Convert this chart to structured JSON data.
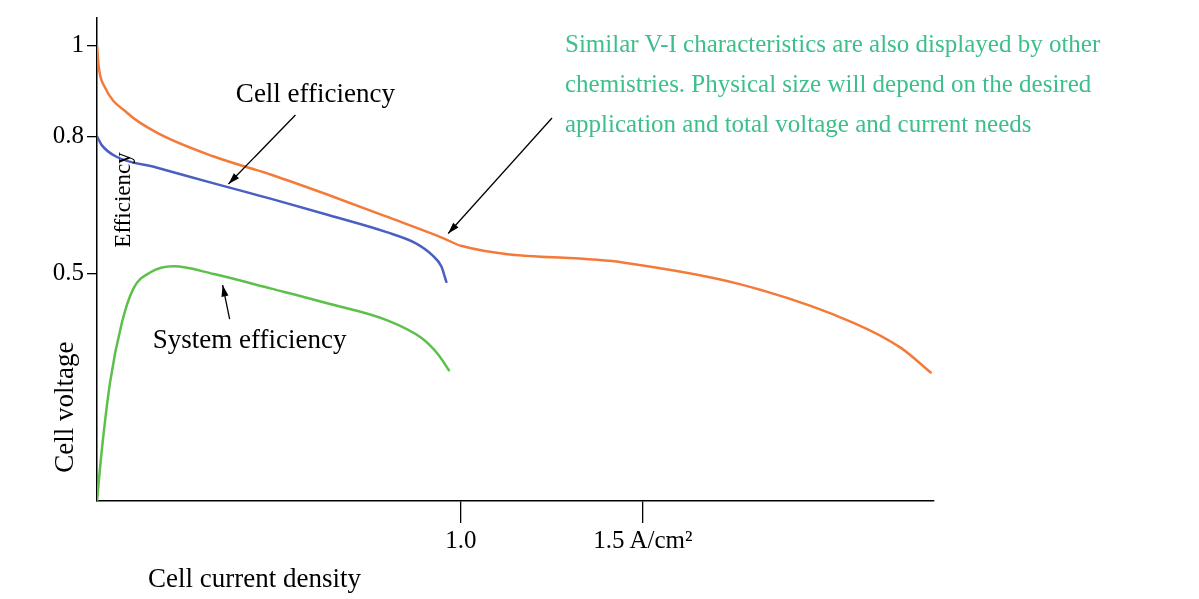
{
  "chart_data": {
    "type": "line",
    "xlabel": "Cell current density",
    "ylabel": "Cell voltage",
    "y2label": "Efficiency",
    "xlim": [
      0,
      2.3
    ],
    "xticks": [
      {
        "value": 1.0,
        "label": "1.0"
      },
      {
        "value": 1.5,
        "label": "1.5 A/cm²"
      }
    ],
    "ylim": [
      0,
      1.06
    ],
    "yticks": [
      0.5,
      0.8,
      1
    ],
    "marker": "none",
    "line_style": "solid",
    "legend": false,
    "grid": false,
    "series": [
      {
        "color": "#f47a3a",
        "x": [
          0,
          0.005,
          0.021,
          0.084,
          0.163,
          0.321,
          0.479,
          0.638,
          0.796,
          0.954,
          1.0,
          1.449,
          1.766,
          2.082,
          2.209,
          2.291
        ],
        "values": [
          1.0,
          0.951,
          0.909,
          0.851,
          0.809,
          0.756,
          0.716,
          0.671,
          0.624,
          0.576,
          0.56,
          0.523,
          0.476,
          0.39,
          0.336,
          0.282
        ]
      },
      {
        "color": "#4a5fc1",
        "x": [
          0,
          0.013,
          0.052,
          0.163,
          0.321,
          0.479,
          0.638,
          0.796,
          0.875,
          0.922,
          0.946,
          0.96
        ],
        "values": [
          0.8,
          0.781,
          0.756,
          0.732,
          0.697,
          0.663,
          0.627,
          0.59,
          0.566,
          0.539,
          0.515,
          0.481
        ]
      },
      {
        "color": "#5cc04a",
        "x": [
          0,
          0.013,
          0.036,
          0.068,
          0.1,
          0.147,
          0.21,
          0.321,
          0.479,
          0.638,
          0.796,
          0.891,
          0.938,
          0.967
        ],
        "values": [
          0,
          0.11,
          0.261,
          0.39,
          0.466,
          0.502,
          0.515,
          0.498,
          0.466,
          0.433,
          0.397,
          0.358,
          0.321,
          0.287
        ]
      }
    ],
    "annotations": [
      {
        "text": "Cell efficiency",
        "x": 0.353,
        "y": 0.689
      },
      {
        "text": "System efficiency",
        "x": 0.337,
        "y": 0.487
      },
      "Similar V-I characteristics are also displayed by other chemistries. Physical size will depend on the desired application and total voltage and current needs"
    ]
  }
}
